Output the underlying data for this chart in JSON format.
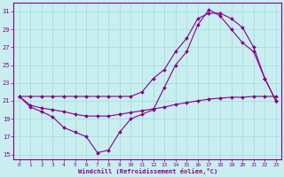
{
  "xlabel": "Windchill (Refroidissement éolien,°C)",
  "bg_color": "#c8eef0",
  "line_color": "#880088",
  "grid_color": "#aadddd",
  "xlim": [
    -0.5,
    23.5
  ],
  "ylim": [
    14.5,
    32
  ],
  "yticks": [
    15,
    17,
    19,
    21,
    23,
    25,
    27,
    29,
    31
  ],
  "xticks": [
    0,
    1,
    2,
    3,
    4,
    5,
    6,
    7,
    8,
    9,
    10,
    11,
    12,
    13,
    14,
    15,
    16,
    17,
    18,
    19,
    20,
    21,
    22,
    23
  ],
  "line1_x": [
    0,
    1,
    2,
    3,
    4,
    5,
    6,
    7,
    8,
    9,
    10,
    11,
    12,
    13,
    14,
    15,
    16,
    17,
    18,
    19,
    20,
    21,
    22,
    23
  ],
  "line1_y": [
    21.5,
    20.5,
    20.2,
    20.0,
    19.8,
    19.5,
    19.3,
    19.3,
    19.3,
    19.5,
    19.7,
    19.9,
    20.1,
    20.3,
    20.6,
    20.8,
    21.0,
    21.2,
    21.3,
    21.4,
    21.4,
    21.5,
    21.5,
    21.5
  ],
  "line2_x": [
    0,
    1,
    2,
    3,
    4,
    5,
    6,
    7,
    8,
    9,
    10,
    11,
    12,
    13,
    14,
    15,
    16,
    17,
    18,
    19,
    20,
    21,
    22,
    23
  ],
  "line2_y": [
    21.5,
    20.3,
    19.8,
    19.2,
    18.0,
    17.5,
    17.0,
    15.2,
    15.5,
    17.5,
    19.0,
    19.5,
    20.0,
    22.5,
    25.0,
    26.5,
    29.5,
    31.2,
    30.5,
    29.0,
    27.5,
    26.5,
    23.5,
    21.0
  ],
  "line3_x": [
    0,
    1,
    2,
    3,
    4,
    5,
    6,
    7,
    8,
    9,
    10,
    11,
    12,
    13,
    14,
    15,
    16,
    17,
    18,
    19,
    20,
    21,
    22,
    23
  ],
  "line3_y": [
    21.5,
    21.5,
    21.5,
    21.5,
    21.5,
    21.5,
    21.5,
    21.5,
    21.5,
    21.5,
    21.5,
    22.0,
    23.5,
    24.5,
    26.5,
    28.0,
    30.2,
    30.8,
    30.8,
    30.2,
    29.2,
    27.0,
    23.5,
    21.0
  ]
}
